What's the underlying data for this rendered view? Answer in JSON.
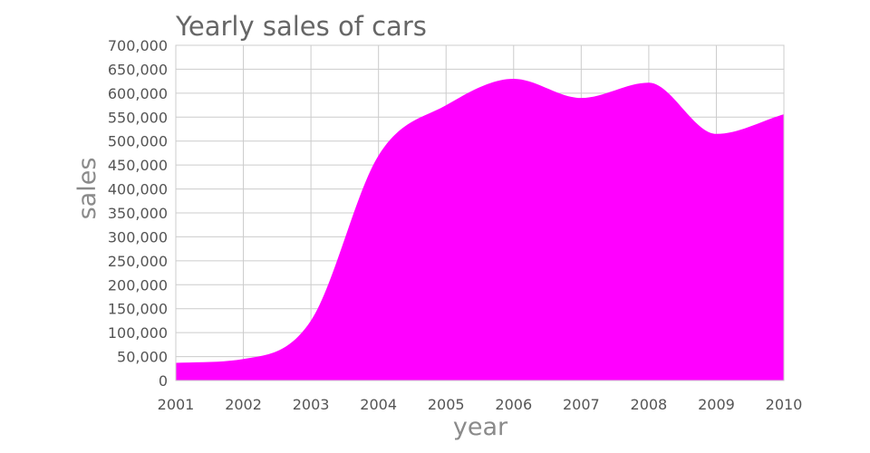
{
  "chart_data": {
    "type": "area",
    "title": "Yearly sales of cars",
    "xlabel": "year",
    "ylabel": "sales",
    "x": [
      2001,
      2002,
      2003,
      2004,
      2005,
      2006,
      2007,
      2008,
      2009,
      2010
    ],
    "x_tick_labels": [
      "2001",
      "2002",
      "2003",
      "2004",
      "2005",
      "2006",
      "2007",
      "2008",
      "2009",
      "2010"
    ],
    "y_tick_labels": [
      "0",
      "50,000",
      "100,000",
      "150,000",
      "200,000",
      "250,000",
      "300,000",
      "350,000",
      "400,000",
      "450,000",
      "500,000",
      "550,000",
      "600,000",
      "650,000",
      "700,000"
    ],
    "y_ticks": [
      0,
      50000,
      100000,
      150000,
      200000,
      250000,
      300000,
      350000,
      400000,
      450000,
      500000,
      550000,
      600000,
      650000,
      700000
    ],
    "series": [
      {
        "values": [
          37000,
          45000,
          125000,
          470000,
          575000,
          630000,
          590000,
          622000,
          515000,
          556000
        ],
        "color": "#ff00ff"
      }
    ],
    "xlim": [
      2001,
      2010
    ],
    "ylim": [
      0,
      700000
    ],
    "grid": true,
    "legend": "none"
  }
}
